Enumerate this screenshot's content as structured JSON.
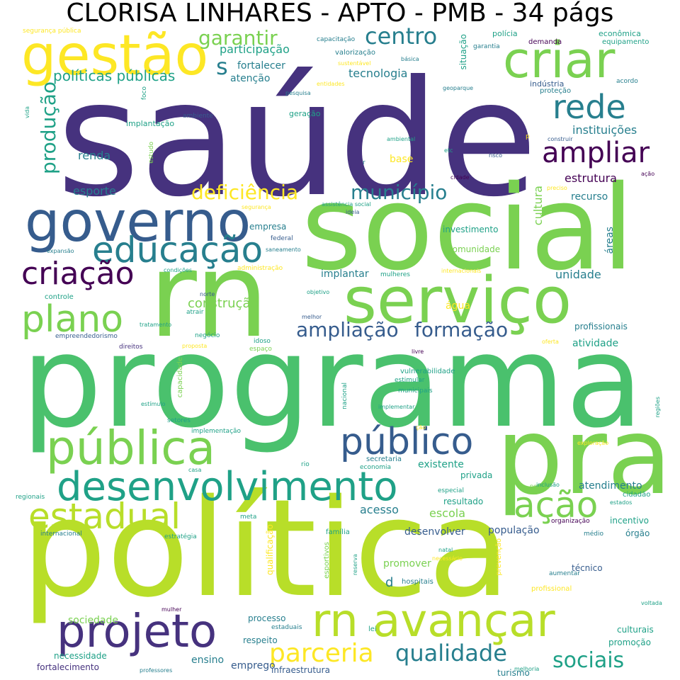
{
  "title": "CLORISA LINHARES - APTO - PMB - 34 págs",
  "palette": {
    "dark_purple": "#440154",
    "indigo": "#46327e",
    "blue": "#365c8d",
    "teal_blue": "#277f8e",
    "teal": "#1fa187",
    "green": "#4ac16d",
    "light_green": "#7ad151",
    "lime": "#b8de29",
    "yellow": "#fde725",
    "background": "#ffffff"
  },
  "words": [
    {
      "text": "saúde"
    },
    {
      "text": "política"
    },
    {
      "text": "programa"
    },
    {
      "text": "social"
    },
    {
      "text": "rn"
    },
    {
      "text": "pra"
    },
    {
      "text": "serviço"
    },
    {
      "text": "desenvolvimento"
    },
    {
      "text": "pública"
    },
    {
      "text": "governo"
    },
    {
      "text": "rn avançar"
    },
    {
      "text": "gestão"
    },
    {
      "text": "criar"
    },
    {
      "text": "projeto"
    },
    {
      "text": "educação"
    },
    {
      "text": "público"
    },
    {
      "text": "estadual"
    },
    {
      "text": "ação"
    },
    {
      "text": "plano"
    },
    {
      "text": "criação"
    },
    {
      "text": "rede"
    },
    {
      "text": "ampliar"
    },
    {
      "text": "parceria"
    },
    {
      "text": "qualidade"
    },
    {
      "text": "sociais"
    },
    {
      "text": "ampliação"
    },
    {
      "text": "formação"
    },
    {
      "text": "município"
    },
    {
      "text": "deficiência"
    },
    {
      "text": "centro"
    },
    {
      "text": "garantir"
    },
    {
      "text": "produção"
    },
    {
      "text": "s"
    },
    {
      "text": "políticas públicas"
    },
    {
      "text": "instituições"
    },
    {
      "text": "estrutura"
    },
    {
      "text": "construção"
    },
    {
      "text": "participação"
    },
    {
      "text": "tecnologia"
    },
    {
      "text": "cultura"
    },
    {
      "text": "esporte"
    },
    {
      "text": "renda"
    },
    {
      "text": "unidade"
    },
    {
      "text": "recurso"
    },
    {
      "text": "fortalecer"
    },
    {
      "text": "atenção"
    },
    {
      "text": "implantar"
    },
    {
      "text": "escola"
    },
    {
      "text": "acesso"
    },
    {
      "text": "atendimento"
    },
    {
      "text": "existente"
    },
    {
      "text": "desenvolver"
    },
    {
      "text": "população"
    },
    {
      "text": "promover"
    },
    {
      "text": "emprego"
    },
    {
      "text": "ensino"
    },
    {
      "text": "sociedade"
    },
    {
      "text": "necessidade"
    },
    {
      "text": "fortalecimento"
    },
    {
      "text": "infraestrutura"
    },
    {
      "text": "turismo"
    },
    {
      "text": "promoção"
    },
    {
      "text": "culturais"
    },
    {
      "text": "respeito"
    },
    {
      "text": "processo"
    },
    {
      "text": "atividade"
    },
    {
      "text": "profissionais"
    },
    {
      "text": "água"
    },
    {
      "text": "empresa"
    },
    {
      "text": "base"
    },
    {
      "text": "investimento"
    },
    {
      "text": "comunidade"
    },
    {
      "text": "áreas"
    },
    {
      "text": "incentivo"
    },
    {
      "text": "órgão"
    },
    {
      "text": "técnico"
    },
    {
      "text": "resultado"
    },
    {
      "text": "privada"
    },
    {
      "text": "qualificação"
    },
    {
      "text": "d"
    },
    {
      "text": "hospitais"
    },
    {
      "text": "segurança pública"
    },
    {
      "text": "capacitação"
    },
    {
      "text": "valorização"
    },
    {
      "text": "situação"
    },
    {
      "text": "garantia"
    },
    {
      "text": "polícia"
    },
    {
      "text": "demanda"
    },
    {
      "text": "econômica"
    },
    {
      "text": "equipamento"
    },
    {
      "text": "indústria"
    },
    {
      "text": "proteção"
    },
    {
      "text": "acordo"
    },
    {
      "text": "geoparque"
    },
    {
      "text": "entidades"
    },
    {
      "text": "pesquisa"
    },
    {
      "text": "foco"
    },
    {
      "text": "vida"
    },
    {
      "text": "ambiente"
    },
    {
      "text": "geração"
    },
    {
      "text": "implantação"
    },
    {
      "text": "estudo"
    },
    {
      "text": "ambiental"
    },
    {
      "text": "etc"
    },
    {
      "text": "risco"
    },
    {
      "text": "construir"
    },
    {
      "text": "cidade"
    },
    {
      "text": "ação"
    },
    {
      "text": "preciso"
    },
    {
      "text": "assistência social"
    },
    {
      "text": "ideia"
    },
    {
      "text": "segurança"
    },
    {
      "text": "federal"
    },
    {
      "text": "expansão"
    },
    {
      "text": "saneamento"
    },
    {
      "text": "condições"
    },
    {
      "text": "administração"
    },
    {
      "text": "mulheres"
    },
    {
      "text": "internacionais"
    },
    {
      "text": "controle"
    },
    {
      "text": "norte"
    },
    {
      "text": "objetivo"
    },
    {
      "text": "atrair"
    },
    {
      "text": "melhor"
    },
    {
      "text": "tratamento"
    },
    {
      "text": "negócio"
    },
    {
      "text": "empreendedorismo"
    },
    {
      "text": "idoso"
    },
    {
      "text": "espaço"
    },
    {
      "text": "direitos"
    },
    {
      "text": "proposta"
    },
    {
      "text": "livre"
    },
    {
      "text": "oferta"
    },
    {
      "text": "capacidade"
    },
    {
      "text": "vulnerabilidade"
    },
    {
      "text": "estimular"
    },
    {
      "text": "municipais"
    },
    {
      "text": "nacional"
    },
    {
      "text": "implementar"
    },
    {
      "text": "estímulo"
    },
    {
      "text": "setores"
    },
    {
      "text": "implementação"
    },
    {
      "text": "ção"
    },
    {
      "text": "exploração"
    },
    {
      "text": "regiões"
    },
    {
      "text": "secretaria"
    },
    {
      "text": "rio"
    },
    {
      "text": "economia"
    },
    {
      "text": "casa"
    },
    {
      "text": "polo"
    },
    {
      "text": "inclusão"
    },
    {
      "text": "cidadão"
    },
    {
      "text": "estados"
    },
    {
      "text": "regionais"
    },
    {
      "text": "especial"
    },
    {
      "text": "organização"
    },
    {
      "text": "meta"
    },
    {
      "text": "médio"
    },
    {
      "text": "internacional"
    },
    {
      "text": "estratégia"
    },
    {
      "text": "família"
    },
    {
      "text": "esportivos"
    },
    {
      "text": "reserva"
    },
    {
      "text": "natal"
    },
    {
      "text": "necessário"
    },
    {
      "text": "prevenção"
    },
    {
      "text": "aumentar"
    },
    {
      "text": "profissional"
    },
    {
      "text": "mulher"
    },
    {
      "text": "voltada"
    },
    {
      "text": "estaduais"
    },
    {
      "text": "lei"
    },
    {
      "text": "professores"
    },
    {
      "text": "melhoria"
    },
    {
      "text": "sustentável"
    },
    {
      "text": "básica"
    },
    {
      "text": "r"
    },
    {
      "text": "p"
    }
  ]
}
